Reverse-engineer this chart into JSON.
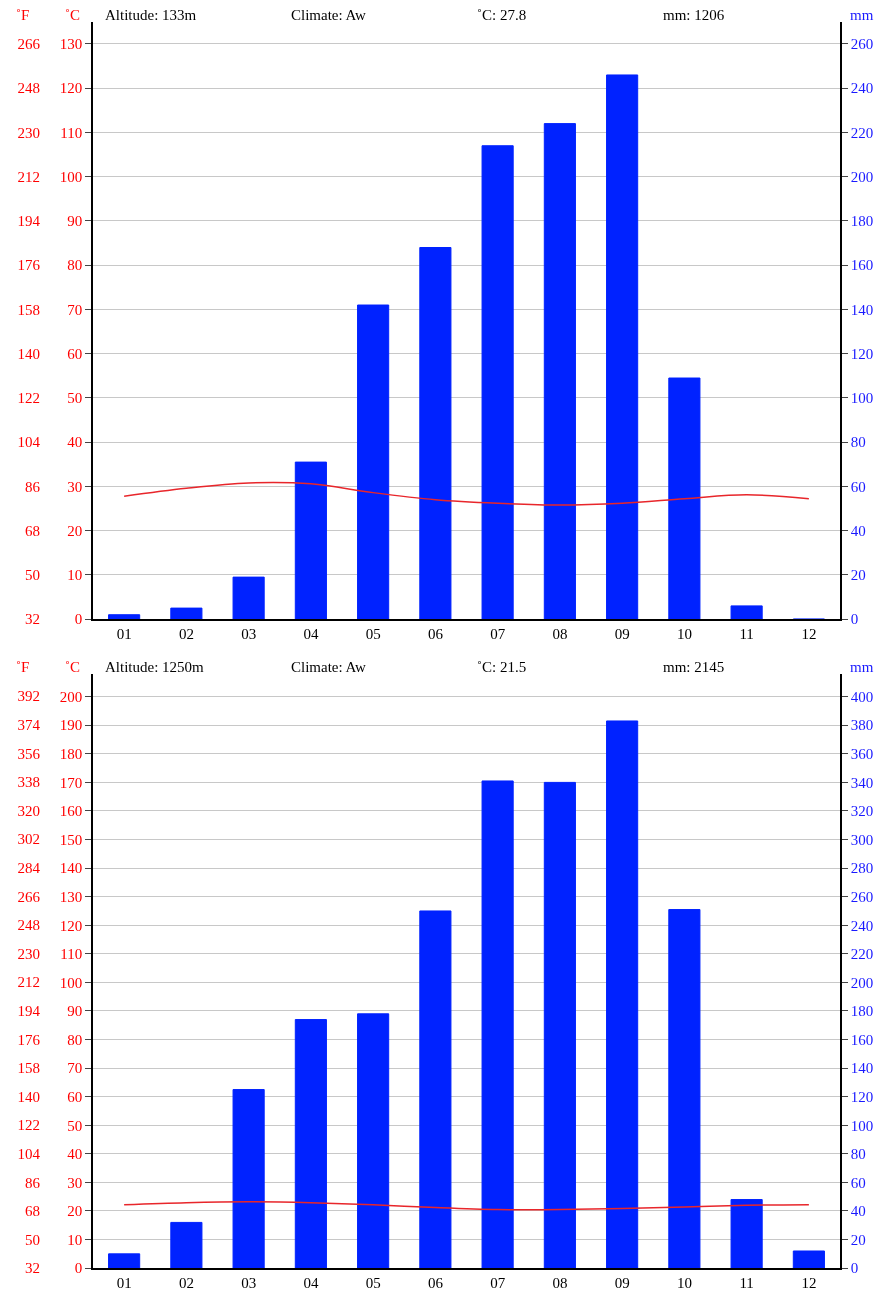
{
  "chart_data": [
    {
      "type": "bar",
      "annotations": [
        "Altitude: 133m",
        "Climate: Aw",
        "˚C: 27.8",
        "mm: 1206"
      ],
      "ylabel": "˚C",
      "y2label": "mm",
      "y3label": "˚F",
      "categories": [
        "01",
        "02",
        "03",
        "04",
        "05",
        "06",
        "07",
        "08",
        "09",
        "10",
        "11",
        "12"
      ],
      "series": [
        {
          "type": "bar",
          "axis": "y2",
          "color": "#0022ff",
          "values": [
            2,
            5,
            19,
            71,
            142,
            168,
            214,
            224,
            246,
            109,
            6,
            0
          ]
        },
        {
          "type": "line",
          "axis": "y",
          "color": "#e8262b",
          "values": [
            27.8,
            29.6,
            30.8,
            30.6,
            28.6,
            27.0,
            26.2,
            25.8,
            26.2,
            27.2,
            28.1,
            27.2
          ]
        }
      ],
      "ylim": [
        0,
        135
      ],
      "yticks": [
        0,
        10,
        20,
        30,
        40,
        50,
        60,
        70,
        80,
        90,
        100,
        110,
        120,
        130
      ],
      "y2lim": [
        0,
        270
      ],
      "y2ticks": [
        0,
        20,
        40,
        60,
        80,
        100,
        120,
        140,
        160,
        180,
        200,
        220,
        240,
        260
      ],
      "y3lim": [
        32,
        275
      ],
      "y3ticks": [
        32,
        50,
        68,
        86,
        104,
        122,
        140,
        158,
        176,
        194,
        212,
        230,
        248,
        266
      ],
      "grid": "y"
    },
    {
      "type": "bar",
      "annotations": [
        "Altitude: 1250m",
        "Climate: Aw",
        "˚C: 21.5",
        "mm: 2145"
      ],
      "ylabel": "˚C",
      "y2label": "mm",
      "y3label": "˚F",
      "categories": [
        "01",
        "02",
        "03",
        "04",
        "05",
        "06",
        "07",
        "08",
        "09",
        "10",
        "11",
        "12"
      ],
      "series": [
        {
          "type": "bar",
          "axis": "y2",
          "color": "#0022ff",
          "values": [
            10,
            32,
            125,
            174,
            178,
            250,
            341,
            340,
            383,
            251,
            48,
            12
          ]
        },
        {
          "type": "line",
          "axis": "y",
          "color": "#e8262b",
          "values": [
            22.2,
            22.9,
            23.2,
            22.9,
            22.2,
            21.2,
            20.5,
            20.5,
            20.9,
            21.4,
            22.0,
            22.2
          ]
        }
      ],
      "ylim": [
        0,
        208
      ],
      "yticks": [
        0,
        10,
        20,
        30,
        40,
        50,
        60,
        70,
        80,
        90,
        100,
        110,
        120,
        130,
        140,
        150,
        160,
        170,
        180,
        190,
        200
      ],
      "y2lim": [
        0,
        416
      ],
      "y2ticks": [
        0,
        20,
        40,
        60,
        80,
        100,
        120,
        140,
        160,
        180,
        200,
        220,
        240,
        260,
        280,
        300,
        320,
        340,
        360,
        380,
        400
      ],
      "y3lim": [
        32,
        406
      ],
      "y3ticks": [
        32,
        50,
        68,
        86,
        104,
        122,
        140,
        158,
        176,
        194,
        212,
        230,
        248,
        266,
        284,
        302,
        320,
        338,
        356,
        374,
        392
      ],
      "grid": "y"
    }
  ]
}
